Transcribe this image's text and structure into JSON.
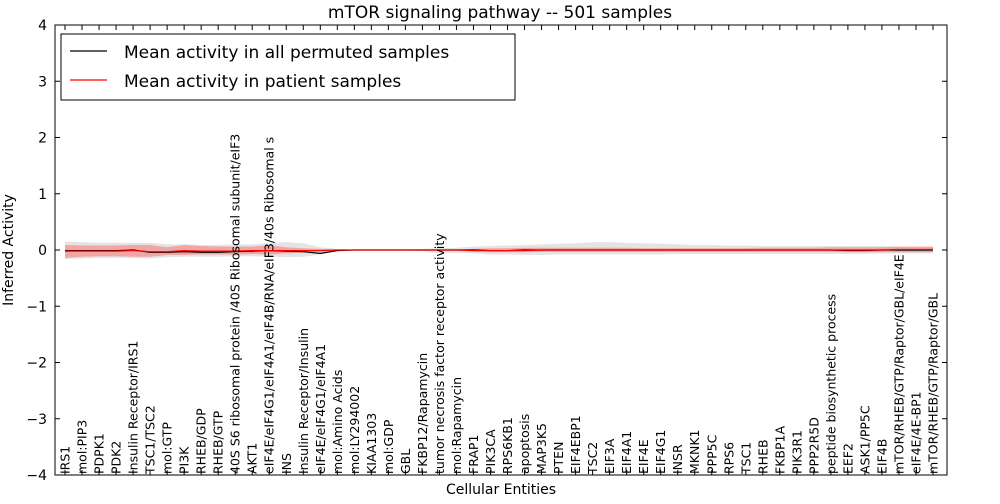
{
  "chart_data": {
    "type": "line",
    "title": "mTOR signaling pathway -- 501 samples",
    "xlabel": "Cellular Entities",
    "ylabel": "Inferred Activity",
    "ylim": [
      -4,
      4
    ],
    "yticks": [
      4,
      3,
      2,
      1,
      0,
      -1,
      -2,
      -3,
      -4
    ],
    "ytick_labels": [
      "4",
      "3",
      "2",
      "1",
      "0",
      "−1",
      "−2",
      "−3",
      "−4"
    ],
    "legend": {
      "position": "top-left",
      "entries": [
        {
          "label": "Mean activity in all permuted samples",
          "color": "#000000"
        },
        {
          "label": "Mean activity in patient samples",
          "color": "#ff0000"
        }
      ]
    },
    "categories": [
      "IRS1",
      "mol:PIP3",
      "PDPK1",
      "PDK2",
      "Insulin Receptor/IRS1",
      "TSC1/TSC2",
      "mol:GTP",
      "PI3K",
      "RHEB/GDP",
      "RHEB/GTP",
      "40S S6 ribosomal protein /40S Ribosomal subunit/eIF3",
      "AKT1",
      "eIF4E/eIF4G1/eIF4A1/eIF4B/RNA/eIF3/40s Ribosomal s",
      "INS",
      "Insulin Receptor/Insulin",
      "eIF4E/eIF4G1/eIF4A1",
      "mol:Amino Acids",
      "mol:LY294002",
      "KIAA1303",
      "mol:GDP",
      "GBL",
      "FKBP12/Rapamycin",
      "tumor necrosis factor receptor activity",
      "mol:Rapamycin",
      "FRAP1",
      "PIK3CA",
      "RPS6KB1",
      "apoptosis",
      "MAP3K5",
      "PTEN",
      "EIF4EBP1",
      "TSC2",
      "EIF3A",
      "EIF4A1",
      "EIF4E",
      "EIF4G1",
      "INSR",
      "MKNK1",
      "PPP5C",
      "RPS6",
      "TSC1",
      "RHEB",
      "FKBP1A",
      "PIK3R1",
      "PPP2R5D",
      "peptide biosynthetic process",
      "EEF2",
      "ASK1/PP5C",
      "EIF4B",
      "mTOR/RHEB/GTP/Raptor/GBL/eIF4E",
      "eIF4E/4E-BP1",
      "mTOR/RHEB/GTP/Raptor/GBL"
    ],
    "series": [
      {
        "name": "Mean activity in all permuted samples",
        "color": "#000000",
        "values": [
          -0.01,
          -0.01,
          -0.01,
          -0.01,
          0,
          -0.04,
          -0.04,
          -0.03,
          -0.04,
          -0.04,
          -0.03,
          -0.02,
          -0.01,
          -0.02,
          -0.03,
          -0.06,
          -0.01,
          0,
          0,
          0,
          0,
          0,
          0,
          0,
          0,
          -0.01,
          -0.01,
          0,
          0,
          0,
          0,
          0,
          0,
          0,
          0,
          0,
          0,
          0,
          0,
          0,
          0,
          0,
          0,
          0,
          0,
          0,
          -0.01,
          -0.01,
          0,
          0,
          0,
          0
        ],
        "band_upper": [
          0.15,
          0.14,
          0.13,
          0.13,
          0.13,
          0.13,
          0.1,
          0.1,
          0.09,
          0.09,
          0.1,
          0.1,
          0.12,
          0.14,
          0.12,
          0.05,
          0.02,
          0.01,
          0.01,
          0.01,
          0.01,
          0.02,
          0.03,
          0.04,
          0.06,
          0.07,
          0.08,
          0.09,
          0.1,
          0.11,
          0.12,
          0.14,
          0.14,
          0.13,
          0.12,
          0.11,
          0.1,
          0.09,
          0.09,
          0.08,
          0.08,
          0.07,
          0.07,
          0.07,
          0.07,
          0.07,
          0.07,
          0.07,
          0.07,
          0.06,
          0.06,
          0.06
        ],
        "band_lower": [
          -0.16,
          -0.15,
          -0.14,
          -0.14,
          -0.14,
          -0.15,
          -0.13,
          -0.12,
          -0.12,
          -0.12,
          -0.11,
          -0.11,
          -0.12,
          -0.13,
          -0.12,
          -0.08,
          -0.03,
          -0.01,
          -0.01,
          -0.01,
          -0.01,
          -0.02,
          -0.06,
          -0.05,
          -0.06,
          -0.08,
          -0.08,
          -0.09,
          -0.09,
          -0.08,
          -0.08,
          -0.08,
          -0.08,
          -0.08,
          -0.08,
          -0.08,
          -0.07,
          -0.07,
          -0.07,
          -0.07,
          -0.07,
          -0.07,
          -0.07,
          -0.07,
          -0.07,
          -0.07,
          -0.07,
          -0.07,
          -0.06,
          -0.06,
          -0.06,
          -0.06
        ]
      },
      {
        "name": "Mean activity in patient samples",
        "color": "#ff0000",
        "values": [
          -0.02,
          -0.02,
          -0.02,
          -0.02,
          -0.01,
          -0.03,
          -0.03,
          -0.01,
          -0.02,
          -0.02,
          -0.02,
          -0.01,
          -0.01,
          -0.01,
          -0.01,
          -0.01,
          0,
          0,
          0,
          0,
          0,
          0,
          0,
          0,
          -0.01,
          -0.01,
          -0.01,
          -0.01,
          0,
          0,
          0,
          0,
          0,
          0,
          0,
          0,
          0,
          0,
          0,
          0,
          0,
          0,
          0,
          0,
          0,
          0,
          0,
          0,
          0,
          0.01,
          0.01,
          0.01
        ],
        "band_upper": [
          0.09,
          0.08,
          0.08,
          0.08,
          0.09,
          0.09,
          0.05,
          0.09,
          0.07,
          0.06,
          0.06,
          0.06,
          0.09,
          0.05,
          0.03,
          0.02,
          0.01,
          0.01,
          0.01,
          0.01,
          0.01,
          0.01,
          0.01,
          0.01,
          0.02,
          0.03,
          0.03,
          0.04,
          0.04,
          0.04,
          0.04,
          0.04,
          0.04,
          0.04,
          0.03,
          0.03,
          0.03,
          0.03,
          0.03,
          0.03,
          0.03,
          0.04,
          0.04,
          0.04,
          0.04,
          0.05,
          0.05,
          0.05,
          0.05,
          0.06,
          0.06,
          0.06
        ],
        "band_lower": [
          -0.14,
          -0.12,
          -0.11,
          -0.11,
          -0.12,
          -0.12,
          -0.09,
          -0.09,
          -0.08,
          -0.08,
          -0.08,
          -0.07,
          -0.08,
          -0.06,
          -0.05,
          -0.03,
          -0.01,
          -0.01,
          -0.01,
          -0.01,
          -0.01,
          -0.01,
          -0.01,
          -0.01,
          -0.03,
          -0.04,
          -0.04,
          -0.04,
          -0.03,
          -0.03,
          -0.03,
          -0.03,
          -0.03,
          -0.03,
          -0.03,
          -0.03,
          -0.03,
          -0.03,
          -0.03,
          -0.03,
          -0.03,
          -0.03,
          -0.03,
          -0.03,
          -0.03,
          -0.03,
          -0.04,
          -0.04,
          -0.04,
          -0.04,
          -0.04,
          -0.04
        ]
      }
    ]
  }
}
